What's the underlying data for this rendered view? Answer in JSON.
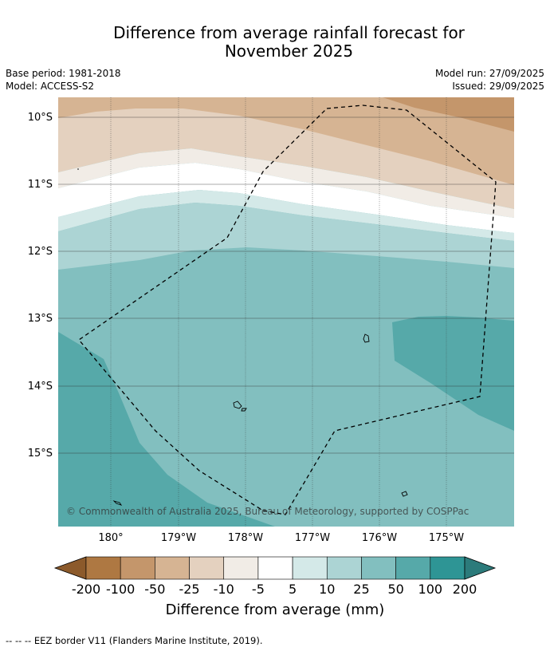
{
  "title_line1": "Difference from average rainfall forecast for",
  "title_line2": "November 2025",
  "base_period": "Base period: 1981-2018",
  "model": "Model: ACCESS-S2",
  "model_run": "Model run: 27/09/2025",
  "issued": "Issued: 29/09/2025",
  "lat_labels": [
    "10°S",
    "11°S",
    "12°S",
    "13°S",
    "14°S",
    "15°S"
  ],
  "lon_labels": [
    "180°",
    "179°W",
    "178°W",
    "177°W",
    "176°W",
    "175°W"
  ],
  "copyright": "© Commonwealth of Australia 2025, Bureau of Meteorology, supported by COSPPac",
  "colorbar": {
    "ticks": [
      "-200",
      "-100",
      "-50",
      "-25",
      "-10",
      "-5",
      "5",
      "10",
      "25",
      "50",
      "100",
      "200"
    ],
    "colors": [
      "#8c5a2b",
      "#ae7842",
      "#c4966b",
      "#d6b493",
      "#e4d1bf",
      "#f1ece6",
      "#ffffff",
      "#d4e9e8",
      "#acd4d4",
      "#82bfbf",
      "#56a9a9",
      "#2e9595",
      "#2c7b7b"
    ],
    "title": "Difference from average (mm)"
  },
  "legend": {
    "line_symbol": "-- -- --",
    "label": "EEZ border V11 (Flanders Marine Institute, 2019)."
  }
}
